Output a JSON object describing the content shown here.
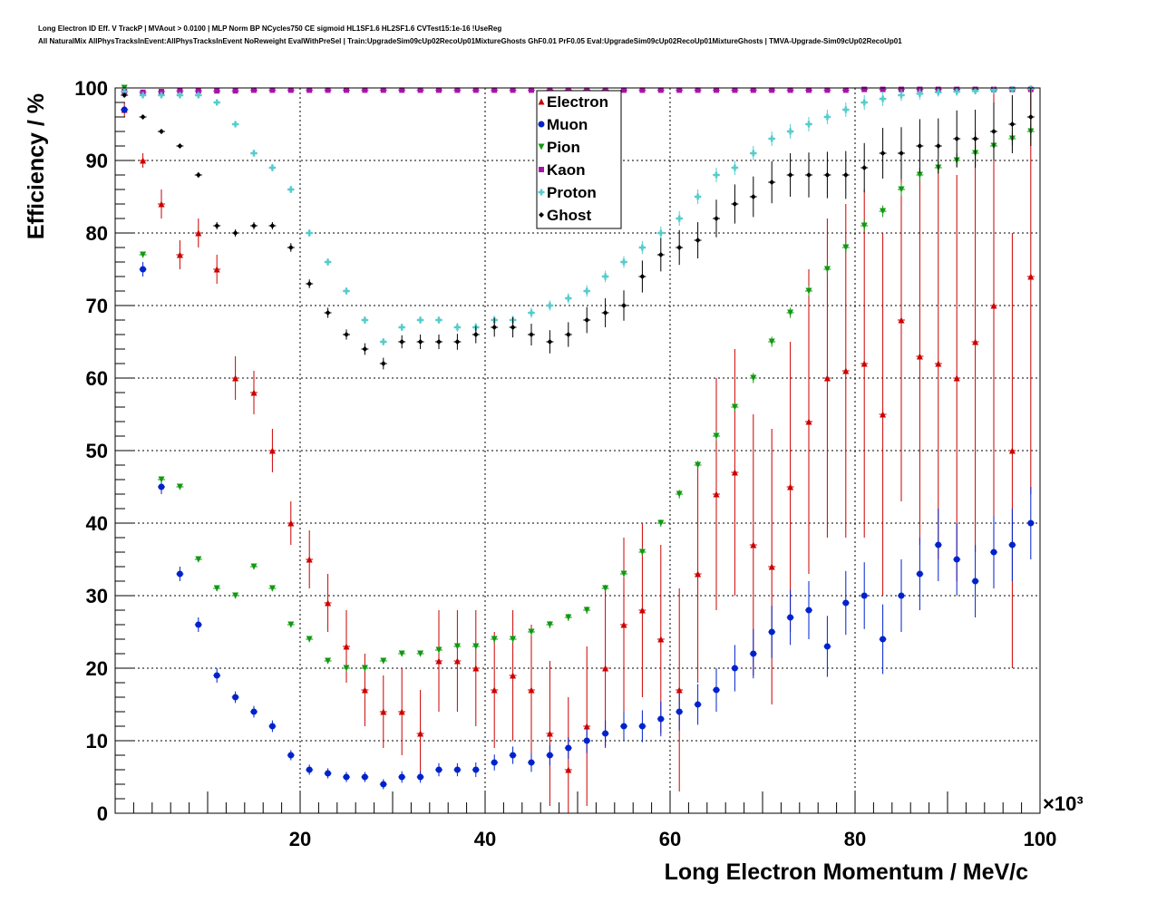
{
  "header": {
    "line1": "Long Electron ID Eff. V TrackP | MVAout > 0.0100 | MLP Norm BP NCycles750 CE sigmoid HL1SF1.6 HL2SF1.6 CVTest15:1e-16 !UseReg",
    "line2": "All NaturalMix AllPhysTracksInEvent:AllPhysTracksInEvent NoReweight EvalWithPreSel | Train:UpgradeSim09cUp02RecoUp01MixtureGhosts GhF0.01 PrF0.05 Eval:UpgradeSim09cUp02RecoUp01MixtureGhosts | TMVA-Upgrade-Sim09cUp02RecoUp01"
  },
  "chart_data": {
    "type": "scatter",
    "title": "",
    "xlabel": "Long Electron Momentum / MeV/c",
    "ylabel": "Efficiency / %",
    "x_multiplier_label": "×10³",
    "xlim": [
      0,
      100
    ],
    "ylim": [
      0,
      100
    ],
    "x_ticks": [
      20,
      40,
      60,
      80,
      100
    ],
    "y_ticks": [
      0,
      10,
      20,
      30,
      40,
      50,
      60,
      70,
      80,
      90,
      100
    ],
    "grid": true,
    "legend_position": "top-center",
    "x": [
      1,
      3,
      5,
      7,
      9,
      11,
      13,
      15,
      17,
      19,
      21,
      23,
      25,
      27,
      29,
      31,
      33,
      35,
      37,
      39,
      41,
      43,
      45,
      47,
      49,
      51,
      53,
      55,
      57,
      59,
      61,
      63,
      65,
      67,
      69,
      71,
      73,
      75,
      77,
      79,
      81,
      83,
      85,
      87,
      89,
      91,
      93,
      95,
      97,
      99
    ],
    "series": [
      {
        "name": "Electron",
        "color": "#cc0000",
        "marker": "triangle-up",
        "values": [
          97,
          90,
          84,
          77,
          80,
          75,
          60,
          58,
          50,
          40,
          35,
          29,
          23,
          17,
          14,
          14,
          11,
          21,
          21,
          20,
          17,
          19,
          17,
          11,
          6,
          12,
          20,
          26,
          28,
          24,
          17,
          33,
          44,
          47,
          37,
          34,
          45,
          54,
          60,
          61,
          62,
          55,
          68,
          63,
          62,
          60,
          65,
          70,
          50,
          74
        ],
        "err": [
          1,
          1,
          2,
          2,
          2,
          2,
          3,
          3,
          3,
          3,
          4,
          4,
          5,
          5,
          5,
          6,
          6,
          7,
          7,
          8,
          8,
          9,
          9,
          10,
          10,
          11,
          11,
          12,
          12,
          13,
          14,
          15,
          16,
          17,
          18,
          19,
          20,
          21,
          22,
          23,
          24,
          25,
          25,
          26,
          27,
          28,
          29,
          30,
          30,
          30
        ]
      },
      {
        "name": "Muon",
        "color": "#0022cc",
        "marker": "circle",
        "values": [
          97,
          75,
          45,
          33,
          26,
          19,
          16,
          14,
          12,
          8,
          6,
          5.5,
          5,
          5,
          4,
          5,
          5,
          6,
          6,
          6,
          7,
          8,
          7,
          8,
          9,
          10,
          11,
          12,
          12,
          13,
          14,
          15,
          17,
          20,
          22,
          25,
          27,
          28,
          23,
          29,
          30,
          24,
          30,
          33,
          37,
          35,
          32,
          36,
          37,
          40
        ],
        "err": [
          0.5,
          1,
          1,
          1,
          1,
          1,
          0.8,
          0.8,
          0.8,
          0.7,
          0.7,
          0.7,
          0.7,
          0.7,
          0.7,
          0.8,
          0.8,
          0.9,
          0.9,
          1,
          1.1,
          1.2,
          1.3,
          1.4,
          1.5,
          1.7,
          1.8,
          2,
          2.2,
          2.4,
          2.6,
          2.8,
          3,
          3.2,
          3.4,
          3.6,
          3.8,
          4,
          4.2,
          4.4,
          4.6,
          4.8,
          5,
          5,
          5,
          5,
          5,
          5,
          5,
          5
        ]
      },
      {
        "name": "Pion",
        "color": "#119911",
        "marker": "triangle-down",
        "values": [
          100,
          77,
          46,
          45,
          35,
          31,
          30,
          34,
          31,
          26,
          24,
          21,
          20,
          20,
          21,
          22,
          22,
          22.5,
          23,
          23,
          24,
          24,
          25,
          26,
          27,
          28,
          31,
          33,
          36,
          40,
          44,
          48,
          52,
          56,
          60,
          65,
          69,
          72,
          75,
          78,
          81,
          83,
          86,
          88,
          89,
          90,
          91,
          92,
          93,
          94
        ],
        "err": [
          0.2,
          0.4,
          0.4,
          0.4,
          0.4,
          0.4,
          0.4,
          0.4,
          0.4,
          0.4,
          0.4,
          0.4,
          0.4,
          0.4,
          0.4,
          0.4,
          0.4,
          0.4,
          0.4,
          0.4,
          0.5,
          0.5,
          0.5,
          0.5,
          0.5,
          0.5,
          0.5,
          0.5,
          0.5,
          0.5,
          0.6,
          0.6,
          0.6,
          0.6,
          0.7,
          0.7,
          0.7,
          0.7,
          0.8,
          0.8,
          0.8,
          0.8,
          0.9,
          0.9,
          0.9,
          1,
          1,
          1,
          1,
          1
        ]
      },
      {
        "name": "Kaon",
        "color": "#aa11aa",
        "marker": "square",
        "values": [
          99.5,
          99.4,
          99.5,
          99.6,
          99.6,
          99.6,
          99.6,
          99.7,
          99.7,
          99.7,
          99.7,
          99.7,
          99.7,
          99.7,
          99.7,
          99.7,
          99.7,
          99.7,
          99.7,
          99.7,
          99.7,
          99.7,
          99.7,
          99.7,
          99.7,
          99.7,
          99.7,
          99.7,
          99.7,
          99.7,
          99.7,
          99.7,
          99.7,
          99.7,
          99.7,
          99.7,
          99.7,
          99.7,
          99.7,
          99.7,
          99.8,
          99.8,
          99.8,
          99.8,
          99.8,
          99.8,
          99.8,
          99.8,
          99.8,
          99.8
        ],
        "err": [
          0.2,
          0.2,
          0.2,
          0.2,
          0.2,
          0.2,
          0.2,
          0.2,
          0.2,
          0.2,
          0.2,
          0.2,
          0.2,
          0.2,
          0.2,
          0.2,
          0.2,
          0.2,
          0.2,
          0.2,
          0.2,
          0.2,
          0.2,
          0.2,
          0.2,
          0.2,
          0.2,
          0.2,
          0.2,
          0.2,
          0.2,
          0.2,
          0.2,
          0.2,
          0.2,
          0.2,
          0.2,
          0.2,
          0.2,
          0.2,
          0.2,
          0.2,
          0.2,
          0.2,
          0.2,
          0.2,
          0.2,
          0.2,
          0.2,
          0.2
        ]
      },
      {
        "name": "Proton",
        "color": "#55cccc",
        "marker": "plus",
        "values": [
          99.5,
          99,
          99,
          99,
          99,
          98,
          95,
          91,
          89,
          86,
          80,
          76,
          72,
          68,
          65,
          67,
          68,
          68,
          67,
          67,
          68,
          68,
          69,
          70,
          71,
          72,
          74,
          76,
          78,
          80,
          82,
          85,
          88,
          89,
          91,
          93,
          94,
          95,
          96,
          97,
          98,
          98.5,
          99,
          99.2,
          99.4,
          99.5,
          99.6,
          99.7,
          99.8,
          99.9
        ],
        "err": [
          0.3,
          0.3,
          0.3,
          0.3,
          0.3,
          0.4,
          0.4,
          0.5,
          0.5,
          0.5,
          0.5,
          0.5,
          0.5,
          0.5,
          0.5,
          0.5,
          0.5,
          0.5,
          0.6,
          0.6,
          0.6,
          0.6,
          0.7,
          0.7,
          0.7,
          0.8,
          0.8,
          0.8,
          0.9,
          0.9,
          1,
          1,
          1,
          1,
          1,
          1,
          1,
          1,
          1,
          1,
          1,
          1,
          0.8,
          0.8,
          0.6,
          0.6,
          0.5,
          0.5,
          0.4,
          0.3
        ]
      },
      {
        "name": "Ghost",
        "color": "#000000",
        "marker": "diamond",
        "values": [
          99,
          96,
          94,
          92,
          88,
          81,
          80,
          81,
          81,
          78,
          73,
          69,
          66,
          64,
          62,
          65,
          65,
          65,
          65,
          66,
          67,
          67,
          66,
          65,
          66,
          68,
          69,
          70,
          74,
          77,
          78,
          79,
          82,
          84,
          85,
          87,
          88,
          88,
          88,
          88,
          89,
          91,
          91,
          92,
          92,
          93,
          93,
          94,
          95,
          96
        ],
        "err": [
          0.3,
          0.3,
          0.3,
          0.3,
          0.4,
          0.5,
          0.5,
          0.5,
          0.5,
          0.6,
          0.6,
          0.7,
          0.7,
          0.8,
          0.8,
          0.9,
          1,
          1,
          1.1,
          1.2,
          1.3,
          1.4,
          1.5,
          1.6,
          1.7,
          1.8,
          2,
          2.1,
          2.2,
          2.3,
          2.4,
          2.5,
          2.6,
          2.7,
          2.8,
          2.9,
          3,
          3.1,
          3.2,
          3.3,
          3.4,
          3.5,
          3.6,
          3.7,
          3.8,
          3.9,
          4,
          4,
          4,
          4
        ]
      }
    ]
  }
}
